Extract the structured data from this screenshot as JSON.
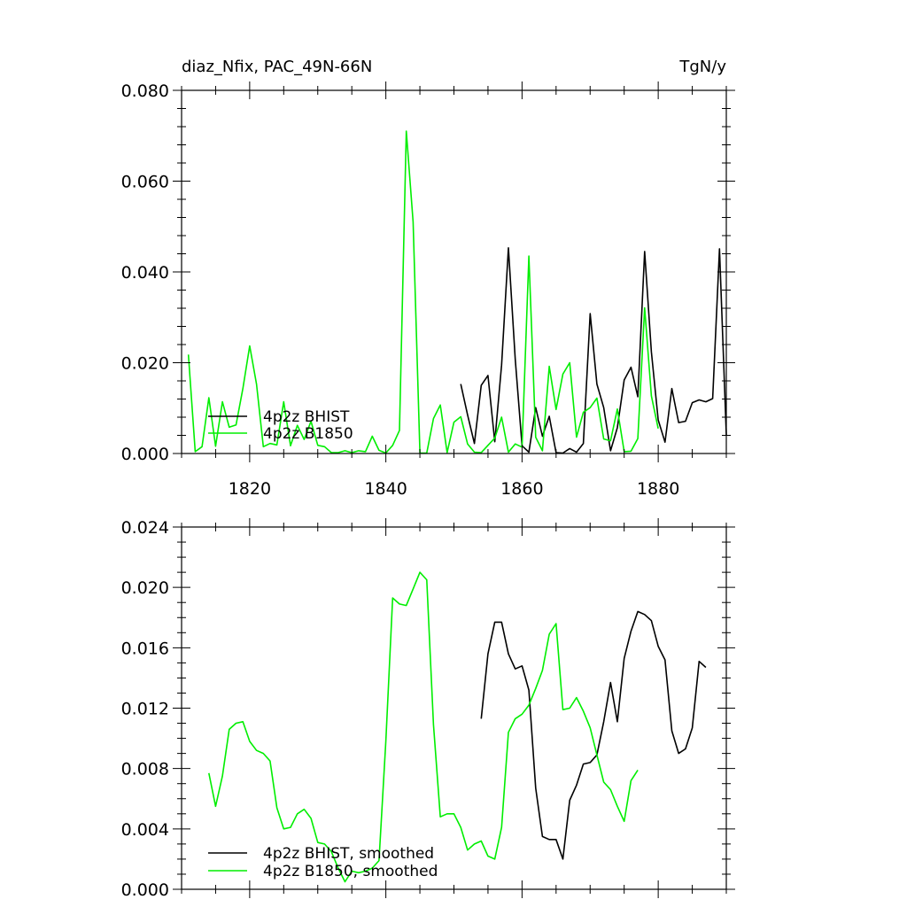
{
  "chart_data": [
    {
      "type": "line",
      "title_left": "diaz_Nfix, PAC_49N-66N",
      "title_right": "TgN/y",
      "xlim": [
        1810,
        1890
      ],
      "ylim": [
        0,
        0.08
      ],
      "x_ticks": [
        1820,
        1840,
        1860,
        1880
      ],
      "x_tick_labels": [
        "1820",
        "1840",
        "1860",
        "1880"
      ],
      "y_ticks": [
        0,
        0.02,
        0.04,
        0.06,
        0.08
      ],
      "y_tick_labels": [
        "0.000",
        "0.020",
        "0.040",
        "0.060",
        "0.080"
      ],
      "legend_position": "bottom-left",
      "series": [
        {
          "name": "4p2z BHIST",
          "color": "#000000",
          "x": [
            1851,
            1852,
            1853,
            1854,
            1855,
            1856,
            1857,
            1858,
            1859,
            1860,
            1861,
            1862,
            1863,
            1864,
            1865,
            1866,
            1867,
            1868,
            1869,
            1870,
            1871,
            1872,
            1873,
            1874,
            1875,
            1876,
            1877,
            1878,
            1879,
            1880,
            1881,
            1882,
            1883,
            1884,
            1885,
            1886,
            1887,
            1888,
            1889,
            1890
          ],
          "y": [
            0.0153,
            0.0085,
            0.0022,
            0.015,
            0.0172,
            0.0026,
            0.0195,
            0.0453,
            0.0208,
            0.0017,
            0.0003,
            0.0101,
            0.0038,
            0.0082,
            0.0002,
            0.0001,
            0.0011,
            0.0003,
            0.0022,
            0.0308,
            0.0153,
            0.0101,
            0.0006,
            0.0057,
            0.0162,
            0.019,
            0.0125,
            0.0445,
            0.0224,
            0.0074,
            0.0025,
            0.0143,
            0.0068,
            0.0071,
            0.0112,
            0.0118,
            0.0114,
            0.0121,
            0.0451,
            0.0041
          ]
        },
        {
          "name": "4p2z B1850",
          "color": "#00ee00",
          "x": [
            1811,
            1812,
            1813,
            1814,
            1815,
            1816,
            1817,
            1818,
            1819,
            1820,
            1821,
            1822,
            1823,
            1824,
            1825,
            1826,
            1827,
            1828,
            1829,
            1830,
            1831,
            1832,
            1833,
            1834,
            1835,
            1836,
            1837,
            1838,
            1839,
            1840,
            1841,
            1842,
            1843,
            1844,
            1845,
            1846,
            1847,
            1848,
            1849,
            1850,
            1851,
            1852,
            1853,
            1854,
            1855,
            1856,
            1857,
            1858,
            1859,
            1860,
            1861,
            1862,
            1863,
            1864,
            1865,
            1866,
            1867,
            1868,
            1869,
            1870,
            1871,
            1872,
            1873,
            1874,
            1875,
            1876,
            1877,
            1878,
            1879,
            1880
          ],
          "y": [
            0.0218,
            0.0004,
            0.0015,
            0.0123,
            0.0016,
            0.0114,
            0.0058,
            0.0063,
            0.0143,
            0.0237,
            0.0153,
            0.0015,
            0.0022,
            0.0019,
            0.0114,
            0.0017,
            0.0062,
            0.0031,
            0.0071,
            0.0018,
            0.0015,
            0.0002,
            0.0002,
            0.0006,
            0.0002,
            0.0006,
            0.0004,
            0.0038,
            0.0007,
            0.0001,
            0.0018,
            0.0051,
            0.071,
            0.051,
            0.0001,
            0.0001,
            0.0077,
            0.0107,
            0.0002,
            0.0069,
            0.0081,
            0.0021,
            0.0003,
            0.0002,
            0.0018,
            0.0034,
            0.008,
            0.0003,
            0.0021,
            0.0014,
            0.0435,
            0.0036,
            0.0006,
            0.0192,
            0.0097,
            0.0175,
            0.02,
            0.0036,
            0.0091,
            0.0101,
            0.0122,
            0.0032,
            0.0028,
            0.0098,
            0.0004,
            0.0005,
            0.0033,
            0.0321,
            0.0127,
            0.0055
          ]
        }
      ]
    },
    {
      "type": "line",
      "xlim": [
        1810,
        1890
      ],
      "ylim": [
        0,
        0.024
      ],
      "x_ticks": [
        1820,
        1840,
        1860,
        1880
      ],
      "y_ticks": [
        0,
        0.004,
        0.008,
        0.012,
        0.016,
        0.02,
        0.024
      ],
      "y_tick_labels": [
        "0.000",
        "0.004",
        "0.008",
        "0.012",
        "0.016",
        "0.020",
        "0.024"
      ],
      "legend_position": "bottom-left",
      "series": [
        {
          "name": "4p2z BHIST, smoothed",
          "color": "#000000",
          "x": [
            1854,
            1855,
            1856,
            1857,
            1858,
            1859,
            1860,
            1861,
            1862,
            1863,
            1864,
            1865,
            1866,
            1867,
            1868,
            1869,
            1870,
            1871,
            1872,
            1873,
            1874,
            1875,
            1876,
            1877,
            1878,
            1879,
            1880,
            1881,
            1882,
            1883,
            1884,
            1885,
            1886,
            1887
          ],
          "y": [
            0.0113,
            0.0156,
            0.0177,
            0.0177,
            0.0156,
            0.0146,
            0.0148,
            0.0132,
            0.0067,
            0.0035,
            0.0033,
            0.0033,
            0.002,
            0.0059,
            0.0069,
            0.0083,
            0.0084,
            0.0089,
            0.0111,
            0.0137,
            0.0111,
            0.0153,
            0.0171,
            0.0184,
            0.0182,
            0.0178,
            0.0161,
            0.0152,
            0.0105,
            0.009,
            0.0093,
            0.0107,
            0.0151,
            0.0147
          ]
        },
        {
          "name": "4p2z B1850, smoothed",
          "color": "#00ee00",
          "x": [
            1814,
            1815,
            1816,
            1817,
            1818,
            1819,
            1820,
            1821,
            1822,
            1823,
            1824,
            1825,
            1826,
            1827,
            1828,
            1829,
            1830,
            1831,
            1832,
            1833,
            1834,
            1835,
            1836,
            1837,
            1838,
            1839,
            1840,
            1841,
            1842,
            1843,
            1844,
            1845,
            1846,
            1847,
            1848,
            1849,
            1850,
            1851,
            1852,
            1853,
            1854,
            1855,
            1856,
            1857,
            1858,
            1859,
            1860,
            1861,
            1862,
            1863,
            1864,
            1865,
            1866,
            1867,
            1868,
            1869,
            1870,
            1871,
            1872,
            1873,
            1874,
            1875,
            1876,
            1877
          ],
          "y": [
            0.0077,
            0.0055,
            0.0075,
            0.0106,
            0.011,
            0.0111,
            0.0098,
            0.0092,
            0.009,
            0.0085,
            0.0054,
            0.004,
            0.0041,
            0.005,
            0.0053,
            0.0047,
            0.0031,
            0.003,
            0.0025,
            0.0014,
            0.0005,
            0.0012,
            0.0011,
            0.0012,
            0.0014,
            0.0019,
            0.0098,
            0.0193,
            0.0189,
            0.0188,
            0.0199,
            0.021,
            0.0205,
            0.0109,
            0.0048,
            0.005,
            0.005,
            0.0041,
            0.0026,
            0.003,
            0.0032,
            0.0022,
            0.002,
            0.0041,
            0.0104,
            0.0113,
            0.0116,
            0.0122,
            0.0133,
            0.0145,
            0.0169,
            0.0176,
            0.0119,
            0.012,
            0.0127,
            0.0118,
            0.0107,
            0.0089,
            0.0071,
            0.0066,
            0.0055,
            0.0045,
            0.0072,
            0.0079
          ]
        }
      ]
    }
  ]
}
